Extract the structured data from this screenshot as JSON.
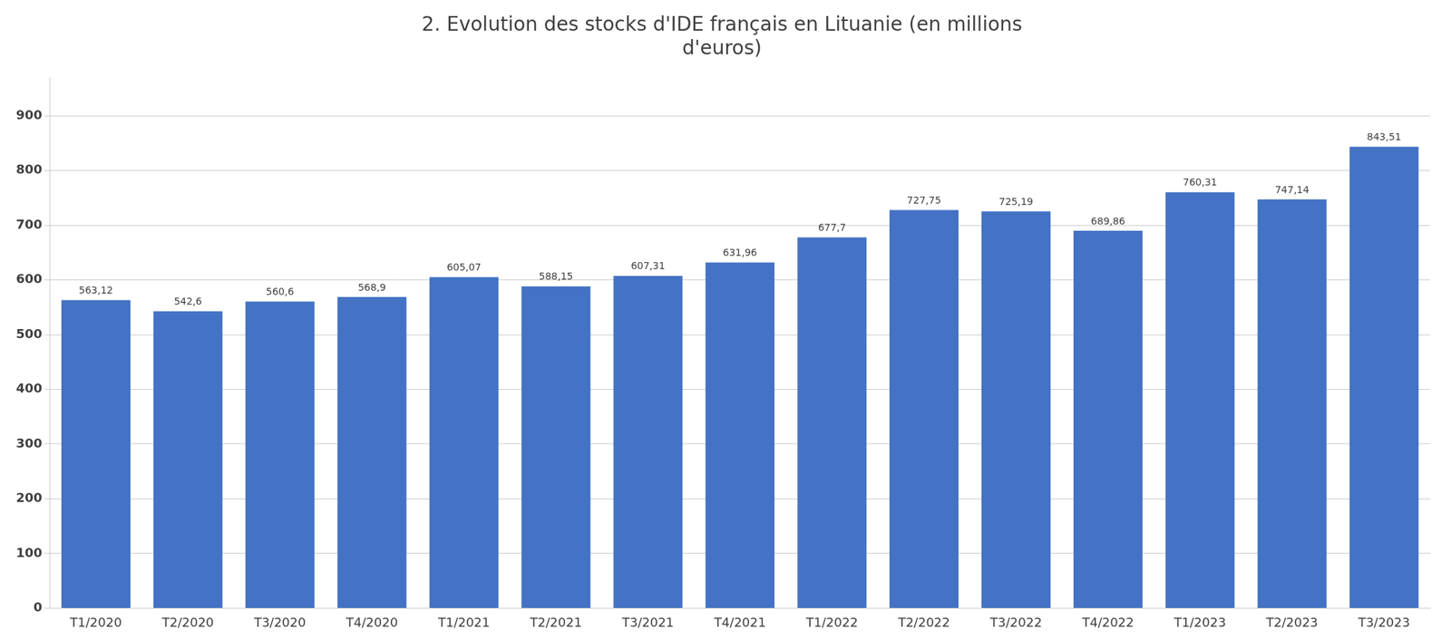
{
  "chart_data": {
    "type": "bar",
    "title": "2. Evolution des stocks d'IDE français en Lituanie (en millions\nd'euros)",
    "categories": [
      "T1/2020",
      "T2/2020",
      "T3/2020",
      "T4/2020",
      "T1/2021",
      "T2/2021",
      "T3/2021",
      "T4/2021",
      "T1/2022",
      "T2/2022",
      "T3/2022",
      "T4/2022",
      "T1/2023",
      "T2/2023",
      "T3/2023"
    ],
    "values": [
      563.12,
      542.6,
      560.6,
      568.9,
      605.07,
      588.15,
      607.31,
      631.96,
      677.7,
      727.75,
      725.19,
      689.86,
      760.31,
      747.14,
      843.51
    ],
    "value_labels": [
      "563,12",
      "542,6",
      "560,6",
      "568,9",
      "605,07",
      "588,15",
      "607,31",
      "631,96",
      "677,7",
      "727,75",
      "725,19",
      "689,86",
      "760,31",
      "747,14",
      "843,51"
    ],
    "data_labels": true,
    "color": "#4472C4",
    "ylim": [
      0,
      970
    ],
    "yticks": [
      0,
      100,
      200,
      300,
      400,
      500,
      600,
      700,
      800,
      900
    ],
    "grid": true
  }
}
